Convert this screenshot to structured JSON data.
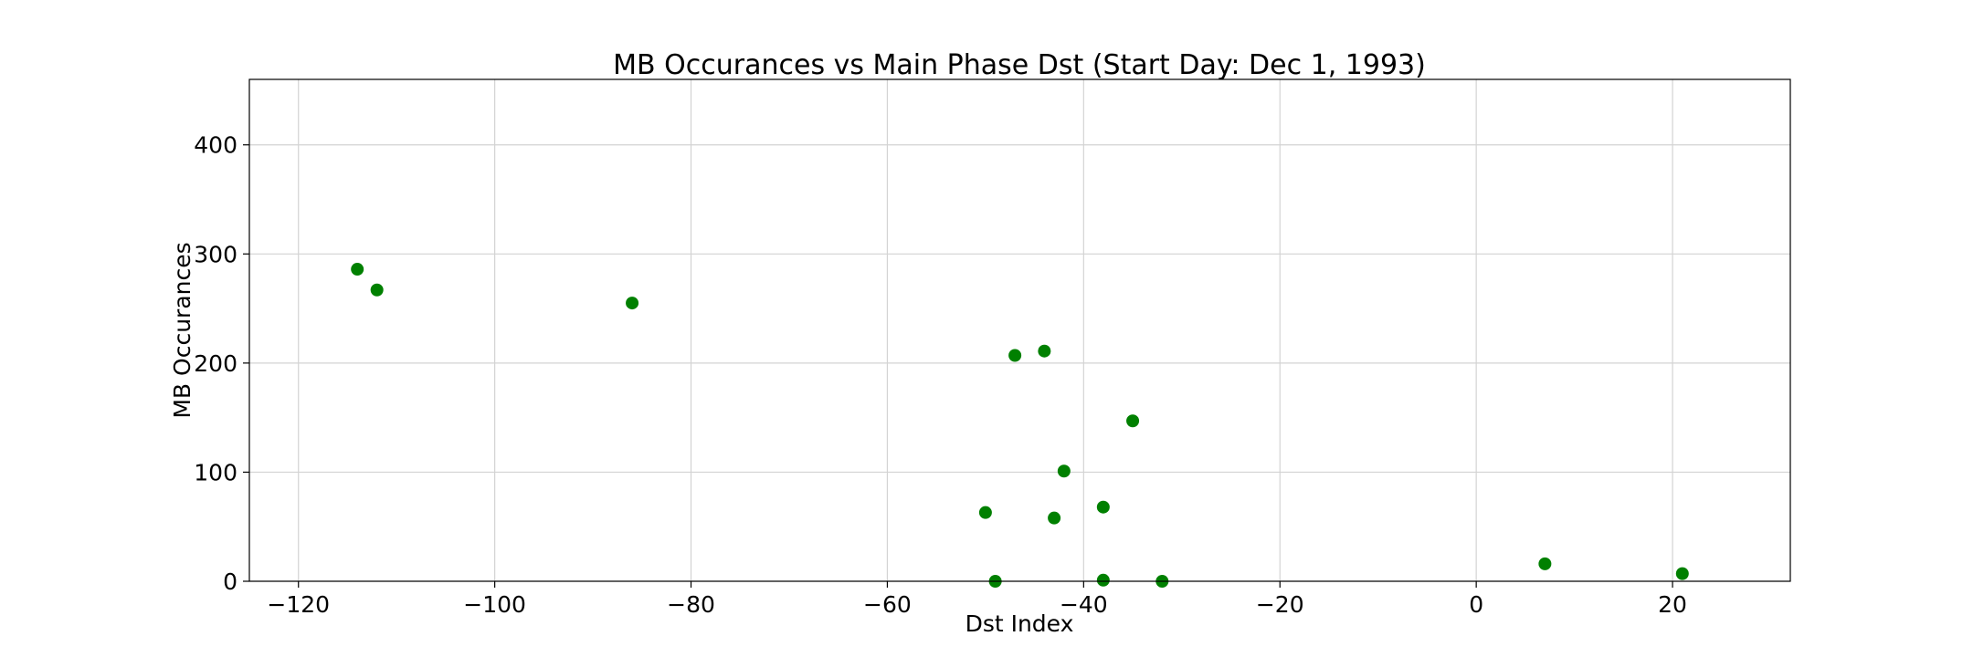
{
  "chart_data": {
    "type": "scatter",
    "title": "MB Occurances vs Main Phase Dst (Start Day: Dec 1, 1993)",
    "xlabel": "Dst Index",
    "ylabel": "MB Occurances",
    "xlim": [
      -125,
      32
    ],
    "ylim": [
      0,
      460
    ],
    "xticks": [
      -120,
      -100,
      -80,
      -60,
      -40,
      -20,
      0,
      20
    ],
    "xtick_labels": [
      "−120",
      "−100",
      "−80",
      "−60",
      "−40",
      "−20",
      "0",
      "20"
    ],
    "yticks": [
      0,
      100,
      200,
      300,
      400
    ],
    "ytick_labels": [
      "0",
      "100",
      "200",
      "300",
      "400"
    ],
    "grid": true,
    "marker_color": "#008000",
    "points": [
      {
        "x": -114,
        "y": 286
      },
      {
        "x": -112,
        "y": 267
      },
      {
        "x": -86,
        "y": 255
      },
      {
        "x": -47,
        "y": 207
      },
      {
        "x": -44,
        "y": 211
      },
      {
        "x": -35,
        "y": 147
      },
      {
        "x": -42,
        "y": 101
      },
      {
        "x": -50,
        "y": 63
      },
      {
        "x": -43,
        "y": 58
      },
      {
        "x": -38,
        "y": 68
      },
      {
        "x": -49,
        "y": 0
      },
      {
        "x": -38,
        "y": 1
      },
      {
        "x": -32,
        "y": 0
      },
      {
        "x": 7,
        "y": 16
      },
      {
        "x": 21,
        "y": 7
      }
    ]
  }
}
